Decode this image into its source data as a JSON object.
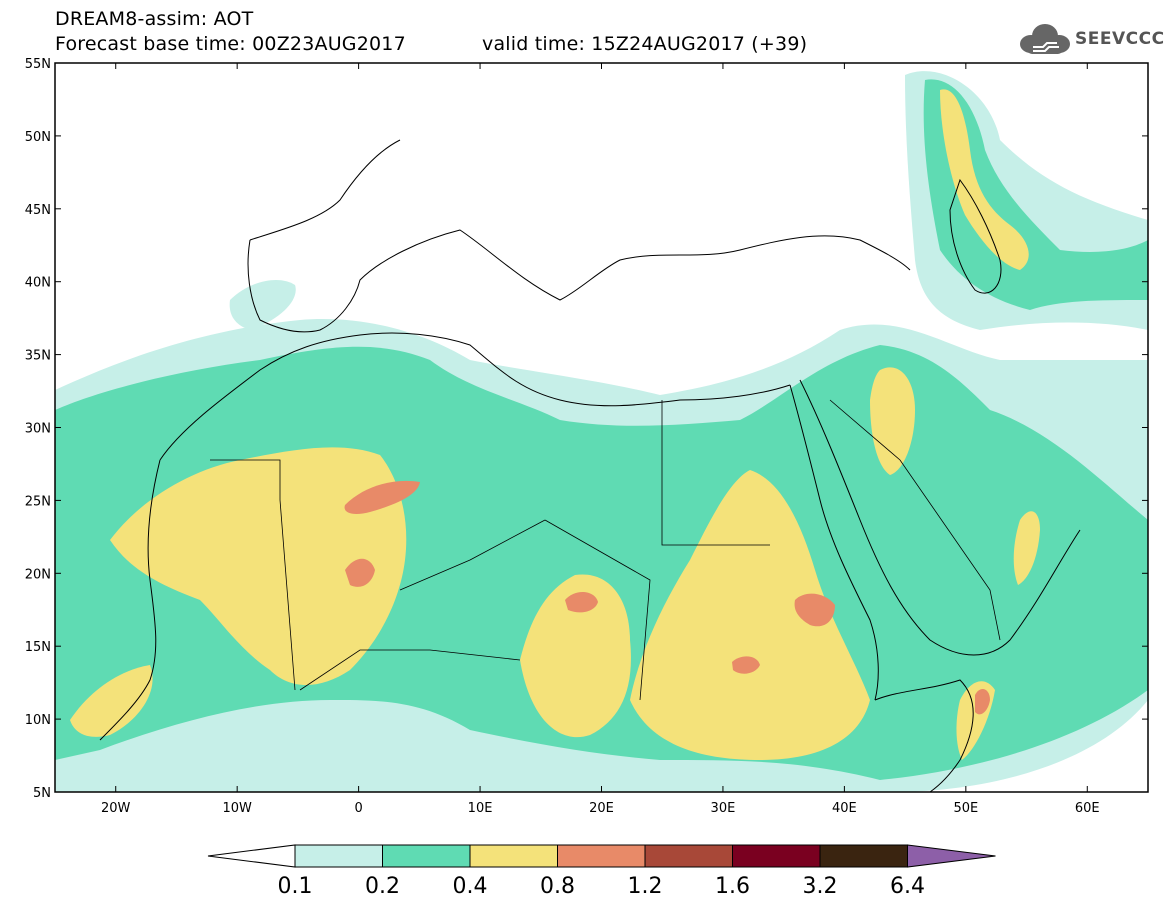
{
  "header": {
    "line1": "DREAM8-assim: AOT",
    "line2": "Forecast base time: 00Z23AUG2017",
    "line3": "valid time: 15Z24AUG2017 (+39)"
  },
  "logo": {
    "text": "SEEVCCC",
    "icon": "cloud-icon"
  },
  "map": {
    "lon_range": [
      -25,
      65
    ],
    "lat_range": [
      5,
      55
    ],
    "lat_ticks": [
      "55N",
      "50N",
      "45N",
      "40N",
      "35N",
      "30N",
      "25N",
      "20N",
      "15N",
      "10N",
      "5N"
    ],
    "lon_ticks": [
      "20W",
      "10W",
      "0",
      "10E",
      "20E",
      "30E",
      "40E",
      "50E",
      "60E"
    ],
    "lat_tick_values": [
      55,
      50,
      45,
      40,
      35,
      30,
      25,
      20,
      15,
      10,
      5
    ],
    "lon_tick_values": [
      -20,
      -10,
      0,
      10,
      20,
      30,
      40,
      50,
      60
    ]
  },
  "colorbar": {
    "levels": [
      "0.1",
      "0.2",
      "0.4",
      "0.8",
      "1.2",
      "1.6",
      "3.2",
      "6.4"
    ],
    "colors": [
      "#ffffff",
      "#c6efe8",
      "#5fdbb3",
      "#f4e27a",
      "#e88a68",
      "#a84838",
      "#7a0020",
      "#3a2410",
      "#8d5fa8"
    ]
  }
}
